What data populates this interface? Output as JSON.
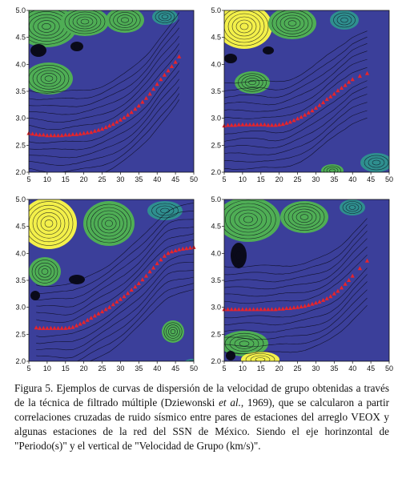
{
  "colors": {
    "background": "#3b3f9a",
    "background_light": "#4a4fae",
    "contour": "#0a0a1a",
    "field_yellow": "#f3f04a",
    "field_green": "#4fae55",
    "field_teal": "#2f8f8f",
    "marker": "#e8242a"
  },
  "caption": {
    "part1": "Figura 5. Ejemplos de curvas de dispersión de la velocidad de grupo obtenidas a través de la técnica de filtrado múltiple (Dziewonski ",
    "etal": "et al.",
    "part2": ", 1969), que se calcularon a partir correlaciones cruzadas de ruido sísmico entre pares de estaciones del arreglo VEOX y algunas estaciones de la red del SSN de México. Siendo el eje horinzontal de \"Periodo(s)\" y el vertical de \"Velocidad de Grupo (km/s)\"."
  },
  "chart_data": [
    {
      "type": "scatter",
      "panel": "top-left",
      "xlim": [
        5,
        50
      ],
      "ylim": [
        2.0,
        5.0
      ],
      "xticks": [
        "5",
        "10",
        "15",
        "20",
        "25",
        "30",
        "35",
        "40",
        "45",
        "50"
      ],
      "yticks": [
        "2.0",
        "2.5",
        "3.0",
        "3.5",
        "4.0",
        "4.5",
        "5.0"
      ],
      "background": "contour map",
      "series": [
        {
          "x": [
            5,
            6,
            7,
            8,
            9,
            10,
            11,
            12,
            13,
            14,
            15,
            16,
            17,
            18,
            19,
            20,
            21,
            22,
            23,
            24,
            25,
            26,
            27,
            28,
            29,
            30,
            31,
            32,
            33,
            34,
            35,
            36,
            37,
            38,
            39,
            40,
            41,
            42,
            43,
            44,
            45,
            46
          ],
          "y": [
            2.72,
            2.71,
            2.7,
            2.69,
            2.69,
            2.68,
            2.68,
            2.68,
            2.68,
            2.68,
            2.69,
            2.69,
            2.7,
            2.7,
            2.71,
            2.72,
            2.73,
            2.74,
            2.76,
            2.78,
            2.8,
            2.83,
            2.86,
            2.89,
            2.93,
            2.97,
            3.01,
            3.06,
            3.11,
            3.17,
            3.23,
            3.3,
            3.37,
            3.45,
            3.54,
            3.63,
            3.72,
            3.8,
            3.88,
            3.96,
            4.04,
            4.14
          ]
        }
      ]
    },
    {
      "type": "scatter",
      "panel": "top-right",
      "xlim": [
        5,
        50
      ],
      "ylim": [
        2.0,
        5.0
      ],
      "xticks": [
        "5",
        "10",
        "15",
        "20",
        "25",
        "30",
        "35",
        "40",
        "45",
        "50"
      ],
      "yticks": [
        "2.0",
        "2.5",
        "3.0",
        "3.5",
        "4.0",
        "4.5",
        "5.0"
      ],
      "background": "contour map",
      "series": [
        {
          "x": [
            5,
            6,
            7,
            8,
            9,
            10,
            11,
            12,
            13,
            14,
            15,
            16,
            17,
            18,
            19,
            20,
            21,
            22,
            23,
            24,
            25,
            26,
            27,
            28,
            29,
            30,
            31,
            32,
            33,
            34,
            35,
            36,
            37,
            38,
            39,
            40,
            42,
            44
          ],
          "y": [
            2.86,
            2.87,
            2.87,
            2.87,
            2.88,
            2.88,
            2.88,
            2.88,
            2.88,
            2.88,
            2.88,
            2.88,
            2.87,
            2.87,
            2.87,
            2.88,
            2.89,
            2.91,
            2.93,
            2.96,
            2.99,
            3.02,
            3.06,
            3.1,
            3.14,
            3.19,
            3.24,
            3.29,
            3.35,
            3.4,
            3.45,
            3.51,
            3.56,
            3.61,
            3.67,
            3.72,
            3.78,
            3.83
          ]
        }
      ]
    },
    {
      "type": "scatter",
      "panel": "bottom-left",
      "xlim": [
        5,
        50
      ],
      "ylim": [
        2.0,
        5.0
      ],
      "xticks": [
        "5",
        "10",
        "15",
        "20",
        "25",
        "30",
        "35",
        "40",
        "45",
        "50"
      ],
      "yticks": [
        "2.0",
        "2.5",
        "3.0",
        "3.5",
        "4.0",
        "4.5",
        "5.0"
      ],
      "background": "contour map",
      "series": [
        {
          "x": [
            7,
            8,
            9,
            10,
            11,
            12,
            13,
            14,
            15,
            16,
            17,
            18,
            19,
            20,
            21,
            22,
            23,
            24,
            25,
            26,
            27,
            28,
            29,
            30,
            31,
            32,
            33,
            34,
            35,
            36,
            37,
            38,
            39,
            40,
            41,
            42,
            43,
            44,
            45,
            46,
            47,
            48,
            49,
            50
          ],
          "y": [
            2.62,
            2.61,
            2.61,
            2.61,
            2.61,
            2.61,
            2.61,
            2.61,
            2.61,
            2.62,
            2.63,
            2.66,
            2.69,
            2.72,
            2.76,
            2.8,
            2.84,
            2.88,
            2.92,
            2.96,
            3.0,
            3.05,
            3.1,
            3.15,
            3.2,
            3.26,
            3.32,
            3.38,
            3.44,
            3.51,
            3.58,
            3.66,
            3.73,
            3.81,
            3.88,
            3.95,
            4.0,
            4.03,
            4.05,
            4.07,
            4.08,
            4.09,
            4.1,
            4.11
          ]
        }
      ]
    },
    {
      "type": "scatter",
      "panel": "bottom-right",
      "xlim": [
        5,
        50
      ],
      "ylim": [
        2.0,
        5.0
      ],
      "xticks": [
        "5",
        "10",
        "15",
        "20",
        "25",
        "30",
        "35",
        "40",
        "45",
        "50"
      ],
      "yticks": [
        "2.0",
        "2.5",
        "3.0",
        "3.5",
        "4.0",
        "4.5",
        "5.0"
      ],
      "background": "contour map",
      "series": [
        {
          "x": [
            5,
            6,
            7,
            8,
            9,
            10,
            11,
            12,
            13,
            14,
            15,
            16,
            17,
            18,
            19,
            20,
            21,
            22,
            23,
            24,
            25,
            26,
            27,
            28,
            29,
            30,
            31,
            32,
            33,
            34,
            35,
            36,
            37,
            38,
            39,
            40,
            42,
            44
          ],
          "y": [
            2.96,
            2.96,
            2.96,
            2.96,
            2.96,
            2.96,
            2.96,
            2.96,
            2.96,
            2.96,
            2.96,
            2.96,
            2.96,
            2.96,
            2.96,
            2.97,
            2.97,
            2.98,
            2.98,
            2.99,
            3.0,
            3.01,
            3.02,
            3.04,
            3.06,
            3.08,
            3.1,
            3.13,
            3.16,
            3.2,
            3.25,
            3.3,
            3.36,
            3.43,
            3.5,
            3.58,
            3.72,
            3.86
          ]
        }
      ]
    }
  ]
}
